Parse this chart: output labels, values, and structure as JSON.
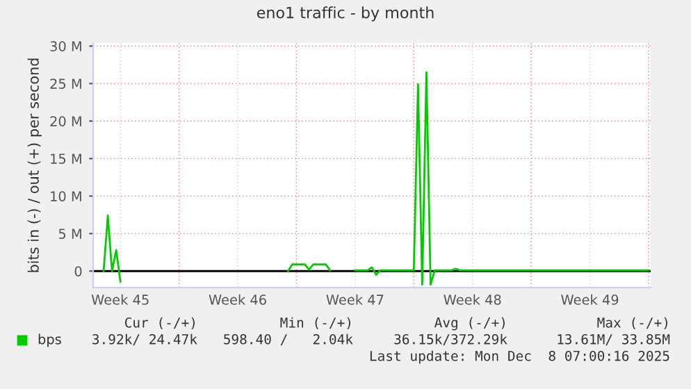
{
  "chart_data": {
    "type": "line",
    "title": "eno1 traffic - by month",
    "ylabel": "bits in (-) / out (+) per second",
    "categories": [
      null,
      null,
      null,
      null,
      null,
      null,
      "Week 45",
      null,
      null,
      null,
      null,
      null,
      null,
      null,
      null,
      null,
      null,
      null,
      null,
      null,
      null,
      null,
      null,
      null,
      null,
      null,
      null,
      null,
      null,
      null,
      null,
      null,
      null,
      null,
      "Week 46",
      null,
      null,
      null,
      null,
      null,
      null,
      null,
      null,
      null,
      null,
      null,
      null,
      null,
      null,
      null,
      null,
      null,
      null,
      null,
      null,
      null,
      null,
      null,
      null,
      null,
      null,
      null,
      "Week 47",
      null,
      null,
      null,
      null,
      null,
      null,
      null,
      null,
      null,
      null,
      null,
      null,
      null,
      null,
      null,
      null,
      null,
      null,
      null,
      null,
      null,
      null,
      null,
      null,
      null,
      null,
      null,
      "Week 48",
      null,
      null,
      null,
      null,
      null,
      null,
      null,
      null,
      null,
      null,
      null,
      null,
      null,
      null,
      null,
      null,
      null,
      null,
      null,
      null,
      null,
      null,
      null,
      null,
      null,
      null,
      null,
      "Week 49",
      null,
      null,
      null,
      null,
      null,
      null,
      null,
      null,
      null,
      null,
      null,
      null,
      null,
      null
    ],
    "ylim": [
      -2.2,
      30.4
    ],
    "yticks": [
      {
        "value": 0,
        "label": "0"
      },
      {
        "value": 5,
        "label": "5 M"
      },
      {
        "value": 10,
        "label": "10 M"
      },
      {
        "value": 15,
        "label": "15 M"
      },
      {
        "value": 20,
        "label": "20 M"
      },
      {
        "value": 25,
        "label": "25 M"
      },
      {
        "value": 30,
        "label": "30 M"
      }
    ],
    "grid": true,
    "legend": "bottom",
    "marker": "none",
    "line_style": "solid",
    "series": [
      {
        "name": "bps",
        "color": "#00cc00",
        "values": [
          null,
          null,
          0,
          7.4,
          0,
          2.8,
          -1.4,
          null,
          null,
          null,
          null,
          null,
          null,
          null,
          null,
          null,
          null,
          null,
          null,
          null,
          null,
          null,
          null,
          null,
          null,
          null,
          null,
          null,
          null,
          null,
          null,
          null,
          null,
          null,
          null,
          null,
          null,
          null,
          null,
          null,
          null,
          null,
          null,
          null,
          null,
          null,
          0,
          0.9,
          0.9,
          0.9,
          0.9,
          0.2,
          0.9,
          0.9,
          0.9,
          0.9,
          0.1,
          null,
          null,
          null,
          null,
          null,
          0.1,
          0.1,
          0.1,
          0.1,
          0.5,
          -0.5,
          0.1,
          0.1,
          0.1,
          0.1,
          0.1,
          0.1,
          0.1,
          0.1,
          0.1,
          24.9,
          -1.8,
          26.5,
          -1.8,
          0.1,
          0.1,
          0.1,
          0.1,
          0.1,
          0.3,
          0.1,
          0.1,
          0.1,
          0.1,
          0.1,
          0.1,
          0.1,
          0.1,
          0.1,
          0.1,
          0.1,
          0.1,
          0.1,
          0.1,
          0.1,
          0.1,
          0.1,
          0.1,
          0.1,
          0.1,
          0.1,
          0.1,
          0.1,
          0.1,
          0.1,
          0.1,
          0.1,
          0.1,
          0.1,
          0.1,
          0.1,
          0.1,
          0.1,
          0.1,
          0.1,
          0.1,
          0.1,
          0.1,
          0.1,
          0.1,
          0.1,
          0.1,
          0.1,
          0.1,
          0.1,
          0.1
        ]
      }
    ],
    "annotations": [
      "Cur (-/+)",
      "Min (-/+)",
      "Avg (-/+)",
      "Max (-/+)",
      "3.92k/ 24.47k",
      "598.40 /   2.04k",
      "36.15k/372.29k",
      "13.61M/ 33.85M",
      "Last update: Mon Dec  8 07:00:16 2025"
    ]
  }
}
